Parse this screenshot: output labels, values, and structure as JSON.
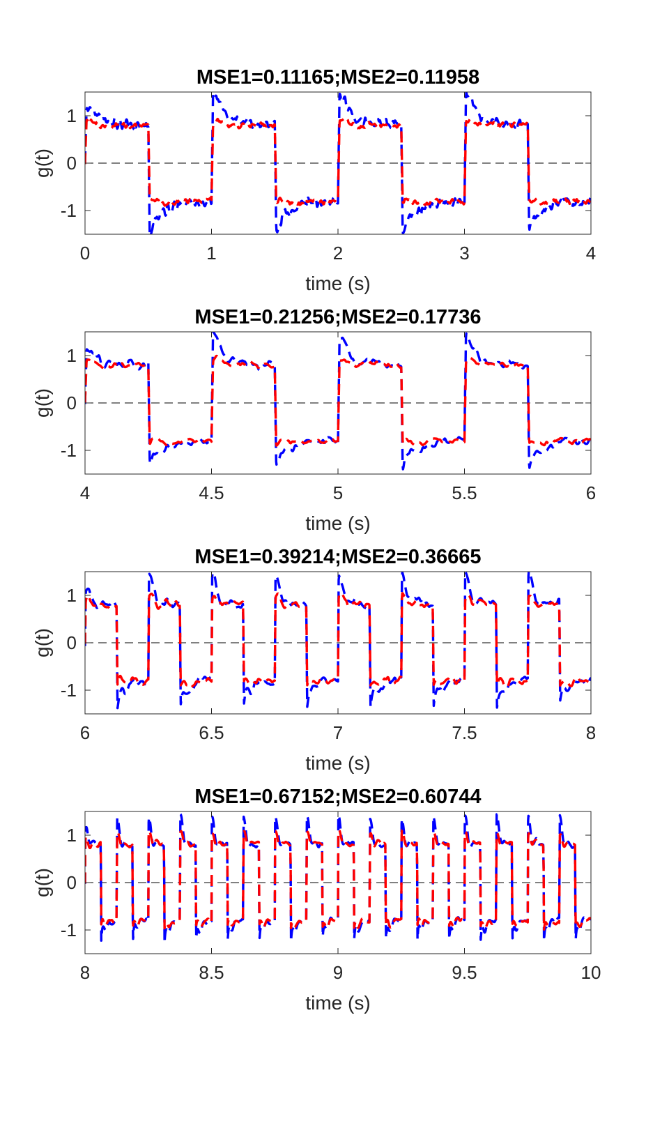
{
  "chart_data": [
    {
      "type": "line",
      "title": "MSE1=0.11165;MSE2=0.11958",
      "xlabel": "time (s)",
      "ylabel": "g(t)",
      "xlim": [
        0,
        4
      ],
      "ylim": [
        -1.5,
        1.5
      ],
      "xticks": [
        0,
        1,
        2,
        3,
        4
      ],
      "xtick_labels": [
        "0",
        "1",
        "2",
        "3",
        "4"
      ],
      "yticks": [
        -1,
        0,
        1
      ],
      "ytick_labels": [
        "-1",
        "0",
        "1"
      ],
      "reference_line": {
        "y": 0,
        "style": "dashed",
        "color": "#000000"
      },
      "square_wave": {
        "period": 1.0,
        "level": 0.8
      },
      "series": [
        {
          "color": "#0000ff",
          "style": "dashed",
          "overshoot": 0.9,
          "noise": 0.09,
          "ring": 0.2
        },
        {
          "color": "#ff0000",
          "style": "dashed",
          "overshoot": 0.05,
          "noise": 0.05,
          "ring": 0.2
        }
      ]
    },
    {
      "type": "line",
      "title": "MSE1=0.21256;MSE2=0.17736",
      "xlabel": "time (s)",
      "ylabel": "g(t)",
      "xlim": [
        4,
        6
      ],
      "ylim": [
        -1.5,
        1.5
      ],
      "xticks": [
        4,
        4.5,
        5,
        5.5,
        6
      ],
      "xtick_labels": [
        "4",
        "4.5",
        "5",
        "5.5",
        "6"
      ],
      "yticks": [
        -1,
        0,
        1
      ],
      "ytick_labels": [
        "-1",
        "0",
        "1"
      ],
      "reference_line": {
        "y": 0,
        "style": "dashed",
        "color": "#000000"
      },
      "square_wave": {
        "period": 0.5,
        "level": 0.8
      },
      "series": [
        {
          "color": "#0000ff",
          "style": "dashed",
          "overshoot": 0.75,
          "noise": 0.08,
          "ring": 0.25
        },
        {
          "color": "#ff0000",
          "style": "dashed",
          "overshoot": 0.1,
          "noise": 0.05,
          "ring": 0.2
        }
      ]
    },
    {
      "type": "line",
      "title": "MSE1=0.39214;MSE2=0.36665",
      "xlabel": "time (s)",
      "ylabel": "g(t)",
      "xlim": [
        6,
        8
      ],
      "ylim": [
        -1.5,
        1.5
      ],
      "xticks": [
        6,
        6.5,
        7,
        7.5,
        8
      ],
      "xtick_labels": [
        "6",
        "6.5",
        "7",
        "7.5",
        "8"
      ],
      "yticks": [
        -1,
        0,
        1
      ],
      "ytick_labels": [
        "-1",
        "0",
        "1"
      ],
      "reference_line": {
        "y": 0,
        "style": "dashed",
        "color": "#000000"
      },
      "square_wave": {
        "period": 0.25,
        "level": 0.8
      },
      "series": [
        {
          "color": "#0000ff",
          "style": "dashed",
          "overshoot": 0.75,
          "noise": 0.08,
          "ring": 0.35
        },
        {
          "color": "#ff0000",
          "style": "dashed",
          "overshoot": 0.15,
          "noise": 0.06,
          "ring": 0.3
        }
      ]
    },
    {
      "type": "line",
      "title": "MSE1=0.67152;MSE2=0.60744",
      "xlabel": "time (s)",
      "ylabel": "g(t)",
      "xlim": [
        8,
        10
      ],
      "ylim": [
        -1.5,
        1.5
      ],
      "xticks": [
        8,
        8.5,
        9,
        9.5,
        10
      ],
      "xtick_labels": [
        "8",
        "8.5",
        "9",
        "9.5",
        "10"
      ],
      "yticks": [
        -1,
        0,
        1
      ],
      "ytick_labels": [
        "-1",
        "0",
        "1"
      ],
      "reference_line": {
        "y": 0,
        "style": "dashed",
        "color": "#000000"
      },
      "square_wave": {
        "period": 0.125,
        "level": 0.8
      },
      "series": [
        {
          "color": "#0000ff",
          "style": "dashed",
          "overshoot": 0.65,
          "noise": 0.06,
          "ring": 0.5
        },
        {
          "color": "#ff0000",
          "style": "dashed",
          "overshoot": 0.25,
          "noise": 0.05,
          "ring": 0.35
        }
      ]
    }
  ]
}
